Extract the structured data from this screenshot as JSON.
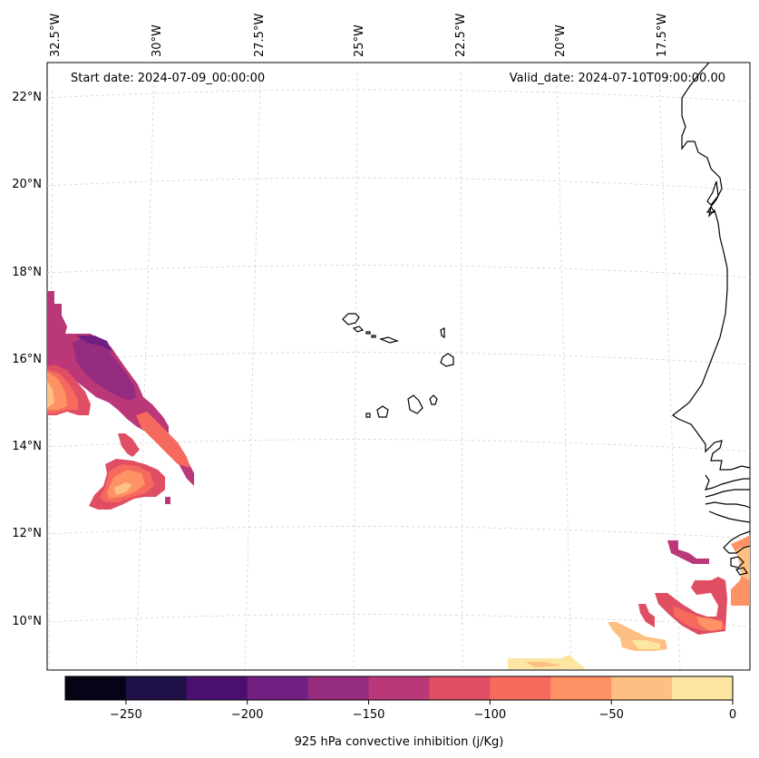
{
  "header": {
    "start_date": "Start date: 2024-07-09_00:00:00",
    "valid_date": "Valid_date: 2024-07-10T09:00:00.00"
  },
  "axes": {
    "longitude_labels": [
      "32.5°W",
      "30°W",
      "27.5°W",
      "25°W",
      "22.5°W",
      "20°W",
      "17.5°W"
    ],
    "latitude_labels": [
      "22°N",
      "20°N",
      "18°N",
      "16°N",
      "14°N",
      "12°N",
      "10°N"
    ]
  },
  "colorbar": {
    "label": "925 hPa convective inhibition (j/Kg)",
    "tick_labels": [
      "−250",
      "−200",
      "−150",
      "−100",
      "−50",
      "0"
    ],
    "levels": [
      -275,
      -250,
      -225,
      -200,
      -175,
      -150,
      -125,
      -100,
      -75,
      -50,
      -25,
      0
    ],
    "colors": [
      "#050416",
      "#1f1147",
      "#4b0f6f",
      "#711f80",
      "#952c80",
      "#bb3878",
      "#e04e64",
      "#f56a5d",
      "#fe9265",
      "#febf83",
      "#fde5a2"
    ]
  },
  "chart_data": {
    "type": "heatmap",
    "title": "925 hPa convective inhibition (j/Kg)",
    "variable": "925 hPa convective inhibition",
    "units": "j/Kg",
    "start_date": "2024-07-09_00:00:00",
    "valid_date": "2024-07-10T09:00:00.00",
    "lon_range": [
      -33.0,
      -15.5
    ],
    "lat_range": [
      9.0,
      22.5
    ],
    "value_range": [
      -275,
      0
    ]
  }
}
